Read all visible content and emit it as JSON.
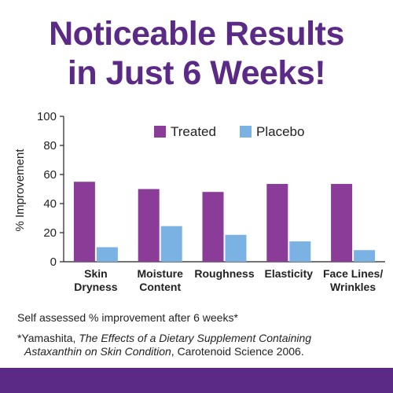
{
  "header": {
    "line1": "Noticeable Results",
    "line2": "in Just 6 Weeks!"
  },
  "chart_data": {
    "type": "bar",
    "categories": [
      [
        "Skin",
        "Dryness"
      ],
      [
        "Moisture",
        "Content"
      ],
      [
        "Roughness"
      ],
      [
        "Elasticity"
      ],
      [
        "Face Lines/",
        "Wrinkles"
      ]
    ],
    "series": [
      {
        "name": "Treated",
        "values": [
          55,
          50,
          48,
          53.5,
          53.5
        ],
        "color": "#8a3c98"
      },
      {
        "name": "Placebo",
        "values": [
          10,
          24.5,
          18.5,
          14,
          8
        ],
        "color": "#7ab3e3"
      }
    ],
    "ylabel": "% Improvement",
    "ylim": [
      0,
      100
    ],
    "yticks": [
      0,
      20,
      40,
      60,
      80,
      100
    ],
    "grid": false,
    "legend": "top-right"
  },
  "footnotes": {
    "note": "Self assessed % improvement after 6 weeks*",
    "citation_prefix": "*Yamashita, ",
    "citation_title_1": "The Effects of a Dietary Supplement Containing",
    "citation_title_2": "Astaxanthin on Skin Condition",
    "citation_suffix": ", Carotenoid Science 2006."
  },
  "colors": {
    "brand_purple": "#5b2a86"
  }
}
